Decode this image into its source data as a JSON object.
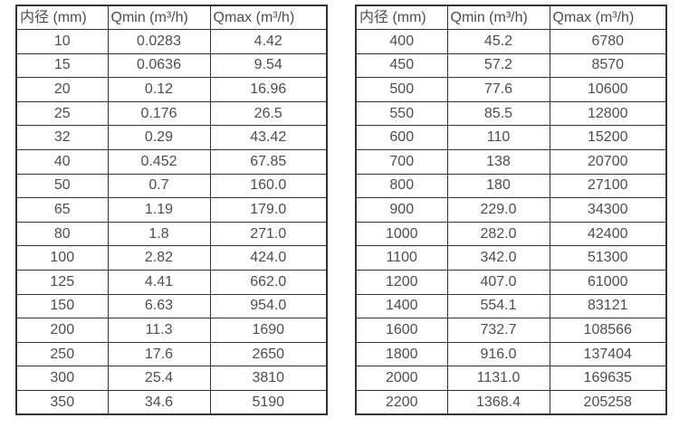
{
  "colors": {
    "background": "#ffffff",
    "border": "#333333",
    "text": "#4d4d4d"
  },
  "tables": [
    {
      "headers": [
        "内径 (mm)",
        "Qmin (m³/h)",
        "Qmax (m³/h)"
      ],
      "rows": [
        [
          "10",
          "0.0283",
          "4.42"
        ],
        [
          "15",
          "0.0636",
          "9.54"
        ],
        [
          "20",
          "0.12",
          "16.96"
        ],
        [
          "25",
          "0.176",
          "26.5"
        ],
        [
          "32",
          "0.29",
          "43.42"
        ],
        [
          "40",
          "0.452",
          "67.85"
        ],
        [
          "50",
          "0.7",
          "160.0"
        ],
        [
          "65",
          "1.19",
          "179.0"
        ],
        [
          "80",
          "1.8",
          "271.0"
        ],
        [
          "100",
          "2.82",
          "424.0"
        ],
        [
          "125",
          "4.41",
          "662.0"
        ],
        [
          "150",
          "6.63",
          "954.0"
        ],
        [
          "200",
          "11.3",
          "1690"
        ],
        [
          "250",
          "17.6",
          "2650"
        ],
        [
          "300",
          "25.4",
          "3810"
        ],
        [
          "350",
          "34.6",
          "5190"
        ]
      ]
    },
    {
      "headers": [
        "内径 (mm)",
        "Qmin (m³/h)",
        "Qmax (m³/h)"
      ],
      "rows": [
        [
          "400",
          "45.2",
          "6780"
        ],
        [
          "450",
          "57.2",
          "8570"
        ],
        [
          "500",
          "77.6",
          "10600"
        ],
        [
          "550",
          "85.5",
          "12800"
        ],
        [
          "600",
          "110",
          "15200"
        ],
        [
          "700",
          "138",
          "20700"
        ],
        [
          "800",
          "180",
          "27100"
        ],
        [
          "900",
          "229.0",
          "34300"
        ],
        [
          "1000",
          "282.0",
          "42400"
        ],
        [
          "1100",
          "342.0",
          "51300"
        ],
        [
          "1200",
          "407.0",
          "61000"
        ],
        [
          "1400",
          "554.1",
          "83121"
        ],
        [
          "1600",
          "732.7",
          "108566"
        ],
        [
          "1800",
          "916.0",
          "137404"
        ],
        [
          "2000",
          "1131.0",
          "169635"
        ],
        [
          "2200",
          "1368.4",
          "205258"
        ]
      ]
    }
  ]
}
